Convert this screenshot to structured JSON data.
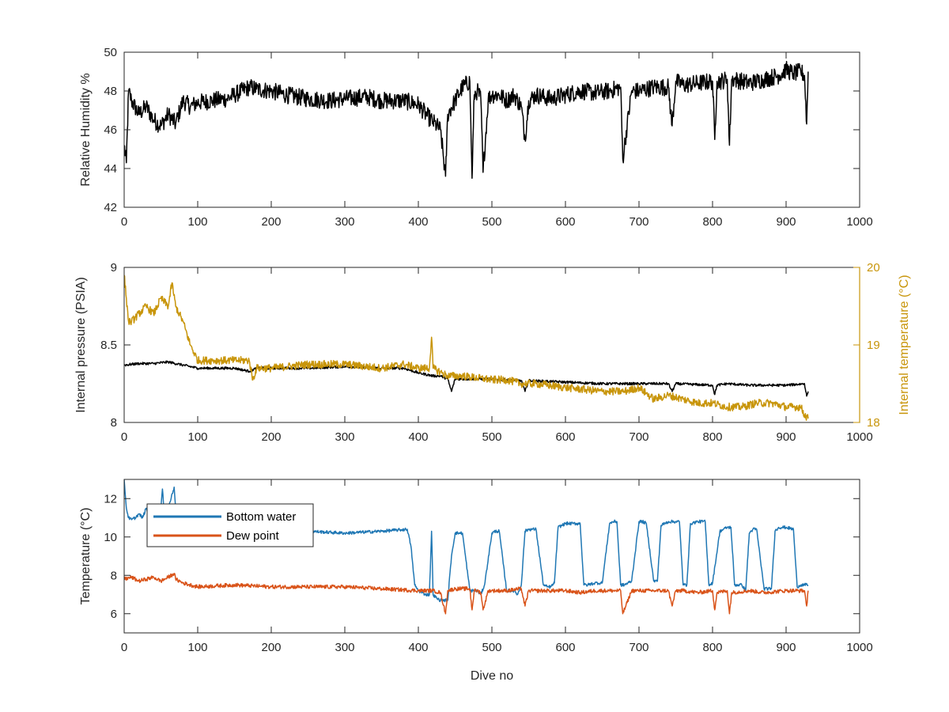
{
  "colors": {
    "humidity": "#000000",
    "pressure": "#000000",
    "internal_temperature": "#c8950a",
    "bottom_water": "#1f77b4",
    "dew_point": "#d95319",
    "axis": "#262626"
  },
  "chart_data": [
    {
      "type": "line",
      "ylabel": "Relative Humidity %",
      "xlim": [
        0,
        1000
      ],
      "ylim": [
        42,
        50
      ],
      "xticks": [
        "0",
        "100",
        "200",
        "300",
        "400",
        "500",
        "600",
        "700",
        "800",
        "900",
        "1000"
      ],
      "yticks": [
        "42",
        "44",
        "46",
        "48",
        "50"
      ],
      "series": [
        {
          "name": "",
          "color_key": "humidity",
          "x": [
            0,
            3,
            6,
            10,
            20,
            30,
            40,
            50,
            60,
            70,
            80,
            90,
            100,
            120,
            140,
            150,
            170,
            180,
            200,
            220,
            250,
            280,
            300,
            330,
            350,
            380,
            400,
            410,
            420,
            430,
            437,
            440,
            450,
            460,
            470,
            473,
            476,
            480,
            485,
            488,
            495,
            500,
            510,
            520,
            530,
            540,
            545,
            550,
            560,
            580,
            600,
            620,
            640,
            660,
            675,
            678,
            690,
            700,
            720,
            740,
            745,
            750,
            760,
            780,
            800,
            803,
            806,
            810,
            820,
            823,
            826,
            830,
            850,
            870,
            890,
            900,
            910,
            920,
            925,
            928,
            930
          ],
          "y": [
            45.2,
            44.3,
            48,
            47.5,
            46.8,
            47.2,
            46.5,
            46.2,
            46.8,
            46.3,
            47.5,
            47.2,
            47.4,
            47.5,
            47.6,
            47.8,
            48.2,
            48.1,
            48,
            47.8,
            47.6,
            47.5,
            47.6,
            47.7,
            47.5,
            47.5,
            47.3,
            46.8,
            46.4,
            46,
            43.6,
            46.8,
            47.5,
            48.2,
            48.5,
            43.5,
            47.8,
            48,
            47.6,
            43.8,
            47.6,
            47.8,
            47.8,
            47.5,
            47.8,
            47.2,
            45.5,
            47.5,
            47.8,
            47.6,
            47.8,
            48,
            47.9,
            48,
            48.2,
            44.5,
            48,
            48,
            48.2,
            48.2,
            46.2,
            48.5,
            48.3,
            48.4,
            48.5,
            45.5,
            48.5,
            48.5,
            48.6,
            45.2,
            48.6,
            48.6,
            48.4,
            48.6,
            48.8,
            49.1,
            48.9,
            49,
            48.8,
            46.3,
            49
          ]
        }
      ]
    },
    {
      "type": "line",
      "ylabel": "Internal pressure (PSIA)",
      "y2label": "Internal temperature (°C)",
      "xlim": [
        0,
        1000
      ],
      "ylim": [
        8,
        9
      ],
      "y2lim": [
        18,
        20
      ],
      "xticks": [
        "0",
        "100",
        "200",
        "300",
        "400",
        "500",
        "600",
        "700",
        "800",
        "900",
        "1000"
      ],
      "yticks": [
        "8",
        "8.5",
        "9"
      ],
      "y2ticks": [
        "18",
        "19",
        "20"
      ],
      "series": [
        {
          "name": "",
          "axis": "left",
          "color_key": "pressure",
          "x": [
            0,
            20,
            40,
            60,
            80,
            100,
            120,
            150,
            170,
            180,
            200,
            250,
            300,
            350,
            380,
            400,
            420,
            430,
            440,
            445,
            450,
            480,
            500,
            540,
            545,
            550,
            600,
            650,
            700,
            740,
            745,
            750,
            800,
            803,
            806,
            820,
            850,
            900,
            925,
            928,
            930
          ],
          "y": [
            8.37,
            8.38,
            8.38,
            8.39,
            8.37,
            8.35,
            8.35,
            8.35,
            8.33,
            8.35,
            8.35,
            8.35,
            8.36,
            8.35,
            8.35,
            8.32,
            8.3,
            8.3,
            8.28,
            8.2,
            8.28,
            8.28,
            8.28,
            8.27,
            8.2,
            8.27,
            8.26,
            8.25,
            8.25,
            8.25,
            8.2,
            8.25,
            8.24,
            8.18,
            8.24,
            8.25,
            8.24,
            8.24,
            8.25,
            8.17,
            8.2
          ]
        },
        {
          "name": "",
          "axis": "right",
          "color_key": "internal_temperature",
          "x": [
            0,
            3,
            6,
            10,
            20,
            30,
            40,
            50,
            60,
            65,
            70,
            75,
            80,
            90,
            100,
            120,
            140,
            150,
            170,
            175,
            180,
            200,
            250,
            300,
            350,
            380,
            400,
            415,
            418,
            420,
            440,
            460,
            500,
            520,
            540,
            560,
            600,
            650,
            680,
            700,
            720,
            740,
            760,
            780,
            800,
            820,
            840,
            860,
            880,
            900,
            920,
            925,
            930
          ],
          "y": [
            19.9,
            19.6,
            19.3,
            19.3,
            19.4,
            19.5,
            19.4,
            19.6,
            19.5,
            19.8,
            19.5,
            19.4,
            19.3,
            19.0,
            18.8,
            18.8,
            18.8,
            18.8,
            18.8,
            18.55,
            18.7,
            18.7,
            18.75,
            18.75,
            18.7,
            18.75,
            18.7,
            18.7,
            19.1,
            18.7,
            18.6,
            18.6,
            18.55,
            18.55,
            18.5,
            18.5,
            18.45,
            18.4,
            18.4,
            18.45,
            18.3,
            18.35,
            18.3,
            18.25,
            18.25,
            18.2,
            18.2,
            18.25,
            18.25,
            18.2,
            18.2,
            18.1,
            18.05
          ]
        }
      ]
    },
    {
      "type": "line",
      "xlabel": "Dive no",
      "ylabel": "Temperature (°C)",
      "xlim": [
        0,
        1000
      ],
      "ylim": [
        5,
        13
      ],
      "xticks": [
        "0",
        "100",
        "200",
        "300",
        "400",
        "500",
        "600",
        "700",
        "800",
        "900",
        "1000"
      ],
      "yticks": [
        "6",
        "8",
        "10",
        "12"
      ],
      "legend": "top-left",
      "series": [
        {
          "name": "Bottom water",
          "color_key": "bottom_water",
          "x": [
            0,
            3,
            6,
            10,
            15,
            20,
            25,
            30,
            35,
            40,
            50,
            52,
            54,
            60,
            68,
            70,
            72,
            80,
            90,
            100,
            150,
            200,
            250,
            300,
            350,
            385,
            390,
            395,
            400,
            410,
            415,
            418,
            420,
            425,
            430,
            440,
            445,
            450,
            455,
            460,
            470,
            480,
            485,
            490,
            500,
            505,
            510,
            520,
            530,
            535,
            540,
            545,
            550,
            560,
            570,
            575,
            580,
            585,
            590,
            600,
            610,
            620,
            625,
            630,
            640,
            650,
            660,
            665,
            670,
            675,
            680,
            690,
            700,
            705,
            710,
            720,
            725,
            730,
            740,
            750,
            755,
            760,
            765,
            770,
            780,
            790,
            795,
            800,
            810,
            820,
            825,
            830,
            840,
            845,
            850,
            855,
            860,
            870,
            880,
            885,
            890,
            900,
            910,
            915,
            920,
            925,
            930
          ],
          "y": [
            13,
            11.5,
            11,
            10.9,
            11,
            11.2,
            11,
            11.5,
            11,
            11.2,
            11.5,
            12.5,
            11.5,
            11.5,
            12.6,
            11.5,
            11.2,
            11,
            10.8,
            10.8,
            10.6,
            10.4,
            10.3,
            10.2,
            10.3,
            10.4,
            9.5,
            7.5,
            7.2,
            7,
            7,
            10.3,
            7,
            6.8,
            6.7,
            6.7,
            9,
            10.2,
            10.2,
            10.2,
            7.2,
            7.2,
            7,
            7.5,
            10.2,
            10.3,
            10.3,
            7.2,
            7.2,
            7,
            7.5,
            10.3,
            10.4,
            10.4,
            7.5,
            7.4,
            7.4,
            7.6,
            10.5,
            10.7,
            10.7,
            10.7,
            7.5,
            7.5,
            7.6,
            7.6,
            10.7,
            10.8,
            10.8,
            7.5,
            7.5,
            7.7,
            10.8,
            10.8,
            10.7,
            7.7,
            7.7,
            10.6,
            10.8,
            10.8,
            10.8,
            7.5,
            7.5,
            10.7,
            10.8,
            10.8,
            7.5,
            7.6,
            10.3,
            10.5,
            10.5,
            7.5,
            7.5,
            7.2,
            10.2,
            10.4,
            10.4,
            7.3,
            7.3,
            10.3,
            10.5,
            10.5,
            10.4,
            7.4,
            7.5,
            7.5,
            7.5
          ]
        },
        {
          "name": "Dew point",
          "color_key": "dew_point",
          "x": [
            0,
            10,
            20,
            30,
            40,
            50,
            60,
            68,
            70,
            80,
            90,
            100,
            150,
            200,
            250,
            300,
            350,
            400,
            420,
            430,
            437,
            440,
            450,
            460,
            470,
            473,
            476,
            480,
            485,
            488,
            495,
            500,
            520,
            540,
            545,
            550,
            560,
            600,
            620,
            640,
            660,
            675,
            678,
            690,
            700,
            720,
            740,
            745,
            750,
            760,
            780,
            800,
            803,
            806,
            820,
            823,
            826,
            850,
            870,
            900,
            920,
            925,
            928,
            930
          ],
          "y": [
            7.8,
            7.9,
            7.7,
            7.8,
            7.9,
            7.7,
            7.9,
            8.1,
            7.8,
            7.6,
            7.5,
            7.4,
            7.5,
            7.4,
            7.4,
            7.4,
            7.3,
            7.2,
            7.2,
            7.1,
            6.0,
            7.2,
            7.3,
            7.3,
            7.3,
            6.2,
            7.2,
            7.2,
            7.1,
            6.2,
            7.2,
            7.2,
            7.2,
            7.3,
            6.4,
            7.2,
            7.2,
            7.2,
            7.1,
            7.2,
            7.2,
            7.2,
            6.0,
            7.2,
            7.2,
            7.2,
            7.2,
            6.4,
            7.2,
            7.2,
            7.1,
            7.2,
            6.2,
            7.1,
            7.2,
            6.0,
            7.1,
            7.2,
            7.1,
            7.2,
            7.2,
            7.2,
            6.4,
            7.2
          ]
        }
      ]
    }
  ]
}
